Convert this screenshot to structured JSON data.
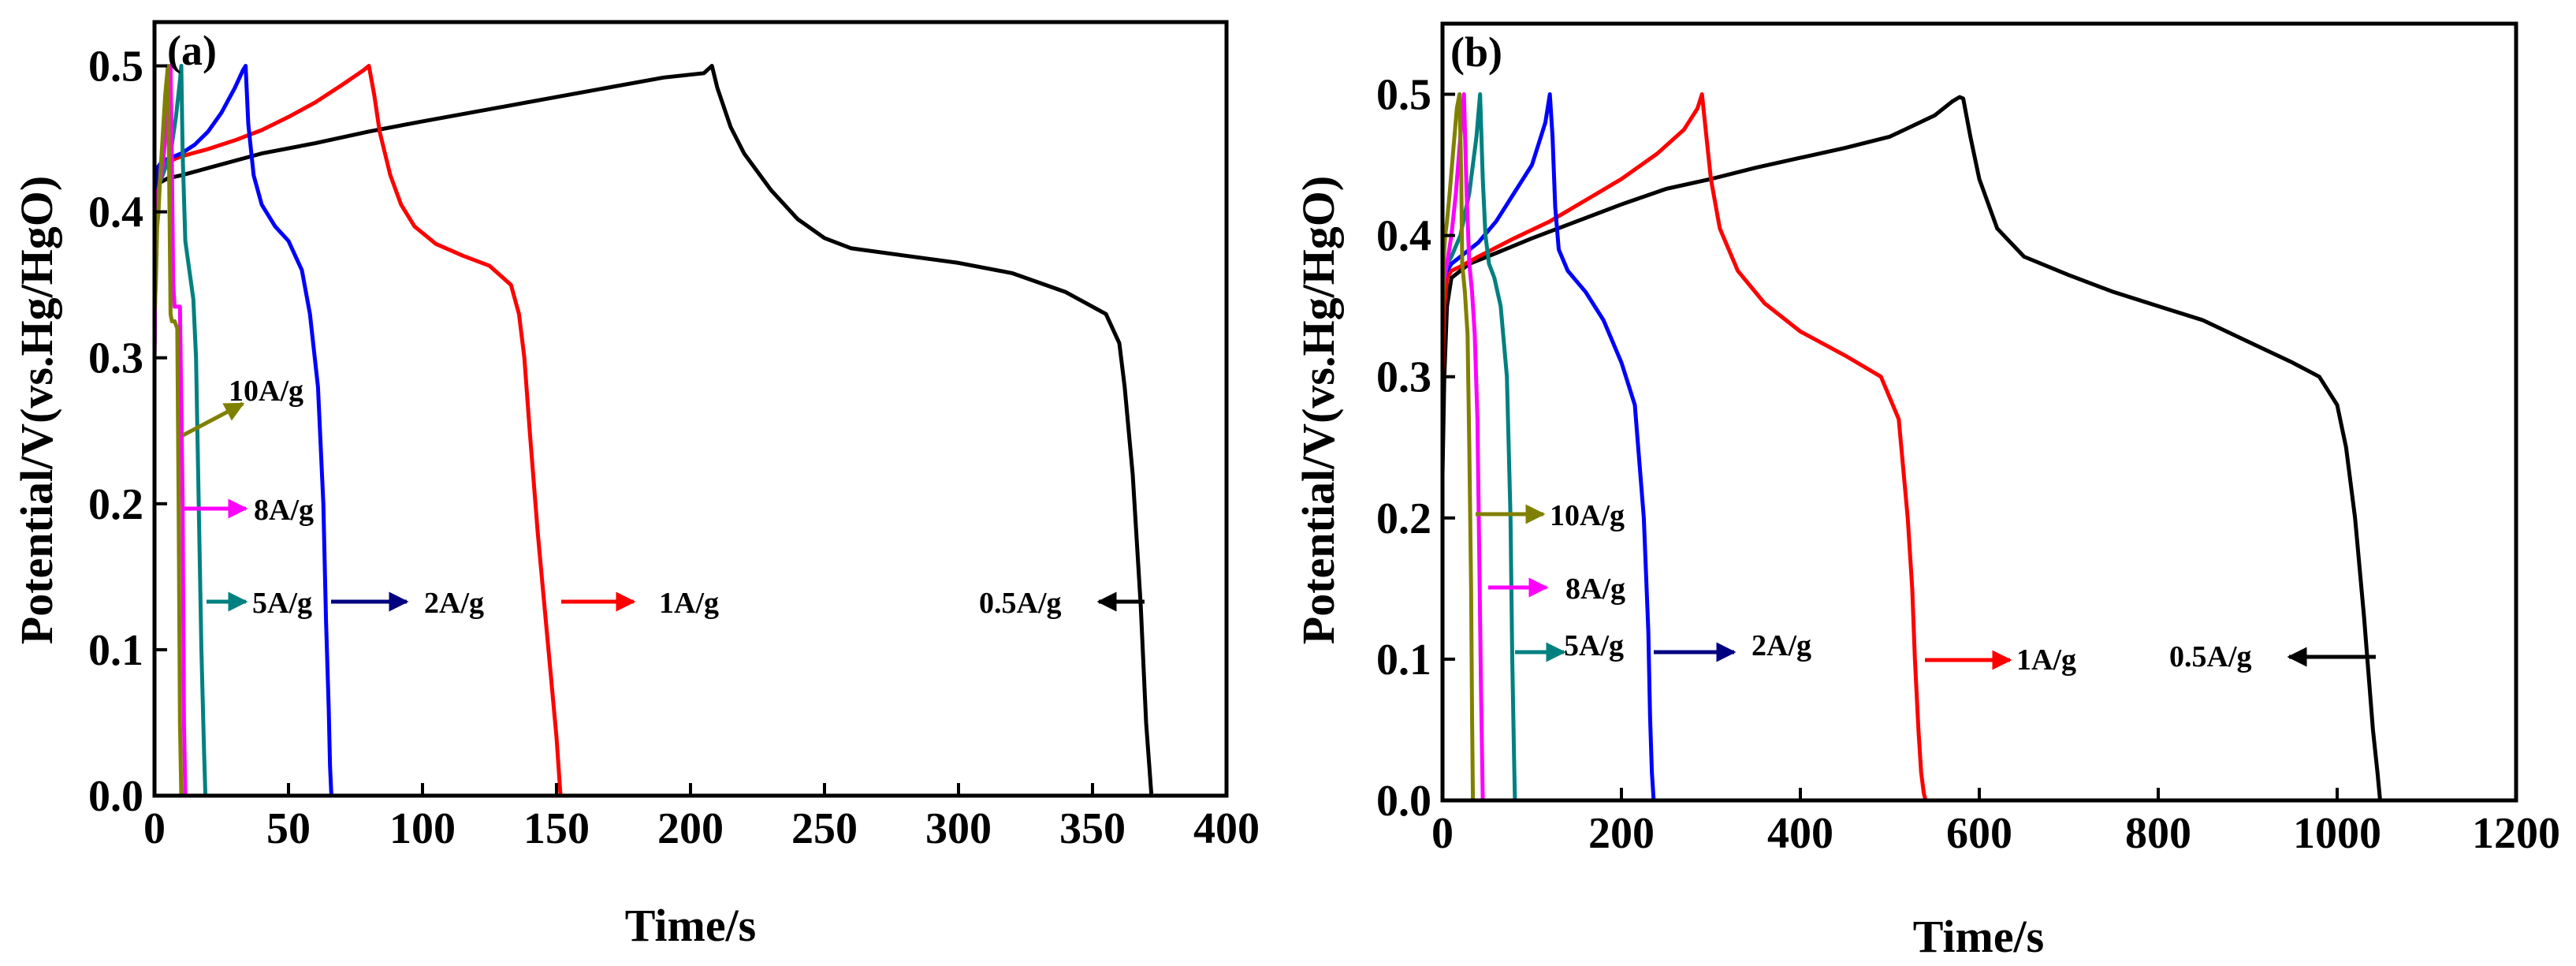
{
  "chart_data": [
    {
      "panel_label": "(a)",
      "type": "line",
      "xlabel": "Time/s",
      "ylabel": "Potential/V(vs.Hg/HgO)",
      "xlim": [
        0,
        400
      ],
      "ylim": [
        0.0,
        0.53
      ],
      "xticks": [
        0,
        50,
        100,
        150,
        200,
        250,
        300,
        350,
        400
      ],
      "xtick_labels": [
        "0",
        "50",
        "100",
        "150",
        "200",
        "250",
        "300",
        "350",
        "400"
      ],
      "yticks": [
        0.0,
        0.1,
        0.2,
        0.3,
        0.4,
        0.5
      ],
      "ytick_labels": [
        "0.0",
        "0.1",
        "0.2",
        "0.3",
        "0.4",
        "0.5"
      ],
      "series": [
        {
          "name": "0.5A/g",
          "color": "#000000",
          "x": [
            0,
            0.5,
            2,
            5,
            10,
            20,
            40,
            60,
            80,
            100,
            130,
            160,
            190,
            205,
            208,
            210,
            215,
            220,
            230,
            240,
            250,
            260,
            280,
            300,
            320,
            340,
            355,
            360,
            362,
            365,
            368,
            370,
            372
          ],
          "y": [
            0.32,
            0.4,
            0.42,
            0.423,
            0.425,
            0.43,
            0.44,
            0.447,
            0.455,
            0.462,
            0.472,
            0.482,
            0.492,
            0.495,
            0.5,
            0.485,
            0.458,
            0.44,
            0.415,
            0.395,
            0.382,
            0.375,
            0.37,
            0.365,
            0.358,
            0.345,
            0.33,
            0.31,
            0.28,
            0.22,
            0.13,
            0.05,
            0.0
          ]
        },
        {
          "name": "1A/g",
          "color": "#ff0000",
          "x": [
            0,
            0.5,
            1,
            3,
            6,
            10,
            20,
            30,
            40,
            50,
            60,
            70,
            78,
            80,
            82,
            84,
            88,
            92,
            97,
            105,
            115,
            125,
            133,
            136,
            138,
            140,
            143,
            146,
            148,
            150,
            151.5
          ],
          "y": [
            0.3,
            0.41,
            0.43,
            0.433,
            0.435,
            0.438,
            0.443,
            0.449,
            0.456,
            0.465,
            0.475,
            0.487,
            0.497,
            0.5,
            0.48,
            0.455,
            0.425,
            0.405,
            0.39,
            0.378,
            0.37,
            0.363,
            0.35,
            0.33,
            0.3,
            0.25,
            0.18,
            0.12,
            0.08,
            0.04,
            0.0
          ]
        },
        {
          "name": "2A/g",
          "color": "#0000ff",
          "x": [
            0,
            0.3,
            1,
            3,
            6,
            10,
            15,
            20,
            25,
            30,
            33,
            34,
            35,
            37,
            40,
            45,
            50,
            55,
            58,
            61,
            63,
            64,
            65,
            65.5,
            66
          ],
          "y": [
            0.3,
            0.41,
            0.43,
            0.435,
            0.437,
            0.44,
            0.446,
            0.455,
            0.468,
            0.485,
            0.497,
            0.5,
            0.46,
            0.425,
            0.405,
            0.39,
            0.38,
            0.36,
            0.33,
            0.28,
            0.2,
            0.12,
            0.06,
            0.02,
            0.0
          ]
        },
        {
          "name": "5A/g",
          "color": "#008080",
          "x": [
            0,
            0.5,
            2,
            4,
            6,
            8,
            9.5,
            10,
            10.5,
            11.5,
            13,
            14.5,
            15.5,
            16.5,
            17.5,
            18.5,
            19
          ],
          "y": [
            0.3,
            0.4,
            0.42,
            0.43,
            0.44,
            0.465,
            0.49,
            0.5,
            0.44,
            0.38,
            0.36,
            0.34,
            0.3,
            0.2,
            0.1,
            0.03,
            0.0
          ]
        },
        {
          "name": "8A/g",
          "color": "#ff00ff",
          "x": [
            0,
            0.5,
            1,
            2,
            3,
            4,
            5,
            6,
            6.5,
            7,
            7.5,
            8.5,
            9.5,
            10.5,
            11,
            11.5
          ],
          "y": [
            0.3,
            0.39,
            0.41,
            0.42,
            0.43,
            0.45,
            0.48,
            0.5,
            0.43,
            0.35,
            0.335,
            0.335,
            0.335,
            0.2,
            0.05,
            0.0
          ]
        },
        {
          "name": "10A/g",
          "color": "#808000",
          "x": [
            0,
            0.5,
            1,
            1.5,
            2,
            3,
            4,
            5,
            5.5,
            6,
            6.5,
            7,
            7.5,
            8.5,
            9,
            9.5,
            10
          ],
          "y": [
            0.33,
            0.35,
            0.39,
            0.4,
            0.42,
            0.45,
            0.48,
            0.5,
            0.42,
            0.33,
            0.325,
            0.325,
            0.325,
            0.32,
            0.2,
            0.05,
            0.0
          ]
        }
      ],
      "annotations": [
        {
          "text": "10A/g",
          "series": "10A/g",
          "arrow": "left-to-right"
        },
        {
          "text": "8A/g",
          "series": "8A/g",
          "arrow": "left-to-right"
        },
        {
          "text": "5A/g",
          "series": "5A/g",
          "arrow": "left-to-right"
        },
        {
          "text": "2A/g",
          "series": "2A/g",
          "arrow": "left-to-right"
        },
        {
          "text": "1A/g",
          "series": "1A/g",
          "arrow": "left-to-right"
        },
        {
          "text": "0.5A/g",
          "series": "0.5A/g",
          "arrow": "right-to-left"
        }
      ]
    },
    {
      "panel_label": "(b)",
      "type": "line",
      "xlabel": "Time/s",
      "ylabel": "Potential/V(vs.Hg/HgO)",
      "xlim": [
        0,
        1200
      ],
      "ylim": [
        0.0,
        0.55
      ],
      "xticks": [
        0,
        200,
        400,
        600,
        800,
        1000,
        1200
      ],
      "xtick_labels": [
        "0",
        "200",
        "400",
        "600",
        "800",
        "1000",
        "1200"
      ],
      "yticks": [
        0.0,
        0.1,
        0.2,
        0.3,
        0.4,
        0.5
      ],
      "ytick_labels": [
        "0.0",
        "0.1",
        "0.2",
        "0.3",
        "0.4",
        "0.5"
      ],
      "series": [
        {
          "name": "0.5A/g",
          "color": "#000000",
          "x": [
            0,
            2,
            5,
            10,
            20,
            30,
            50,
            100,
            150,
            200,
            250,
            300,
            350,
            400,
            450,
            500,
            550,
            570,
            578,
            582,
            590,
            600,
            620,
            650,
            700,
            750,
            800,
            850,
            900,
            950,
            980,
            1000,
            1010,
            1020,
            1030,
            1040,
            1045,
            1048
          ],
          "y": [
            0.23,
            0.3,
            0.35,
            0.37,
            0.375,
            0.38,
            0.385,
            0.398,
            0.41,
            0.422,
            0.433,
            0.44,
            0.448,
            0.455,
            0.462,
            0.47,
            0.485,
            0.495,
            0.498,
            0.497,
            0.47,
            0.44,
            0.405,
            0.385,
            0.372,
            0.36,
            0.35,
            0.34,
            0.325,
            0.31,
            0.3,
            0.28,
            0.25,
            0.2,
            0.13,
            0.05,
            0.02,
            0.0
          ]
        },
        {
          "name": "1A/g",
          "color": "#ff0000",
          "x": [
            0,
            2,
            5,
            10,
            20,
            40,
            80,
            120,
            160,
            200,
            240,
            270,
            285,
            290,
            295,
            300,
            310,
            330,
            360,
            400,
            450,
            490,
            510,
            520,
            525,
            528,
            532,
            535,
            538,
            540
          ],
          "y": [
            0.3,
            0.35,
            0.37,
            0.375,
            0.378,
            0.385,
            0.398,
            0.41,
            0.425,
            0.44,
            0.458,
            0.475,
            0.49,
            0.5,
            0.47,
            0.44,
            0.405,
            0.375,
            0.352,
            0.332,
            0.315,
            0.3,
            0.27,
            0.2,
            0.15,
            0.1,
            0.05,
            0.02,
            0.005,
            0.0
          ]
        },
        {
          "name": "2A/g",
          "color": "#0000ff",
          "x": [
            0,
            2,
            5,
            10,
            20,
            40,
            60,
            80,
            100,
            115,
            120,
            123,
            126,
            130,
            140,
            160,
            180,
            200,
            215,
            225,
            230,
            232,
            234,
            236
          ],
          "y": [
            0.36,
            0.37,
            0.375,
            0.38,
            0.385,
            0.395,
            0.41,
            0.43,
            0.45,
            0.48,
            0.5,
            0.47,
            0.42,
            0.39,
            0.375,
            0.36,
            0.34,
            0.31,
            0.28,
            0.2,
            0.12,
            0.06,
            0.02,
            0.0
          ]
        },
        {
          "name": "5A/g",
          "color": "#008080",
          "x": [
            0,
            2,
            5,
            10,
            20,
            30,
            38,
            42,
            45,
            48,
            52,
            58,
            65,
            72,
            76,
            78,
            80,
            81
          ],
          "y": [
            0.35,
            0.37,
            0.38,
            0.385,
            0.4,
            0.43,
            0.47,
            0.5,
            0.44,
            0.4,
            0.38,
            0.37,
            0.35,
            0.3,
            0.2,
            0.1,
            0.03,
            0.0
          ]
        },
        {
          "name": "8A/g",
          "color": "#ff00ff",
          "x": [
            0,
            2,
            5,
            10,
            15,
            20,
            24,
            27,
            30,
            33,
            36,
            39,
            41,
            43,
            45
          ],
          "y": [
            0.36,
            0.37,
            0.38,
            0.4,
            0.43,
            0.47,
            0.5,
            0.43,
            0.38,
            0.36,
            0.33,
            0.27,
            0.18,
            0.08,
            0.0
          ]
        },
        {
          "name": "10A/g",
          "color": "#808000",
          "x": [
            0,
            1,
            3,
            5,
            8,
            12,
            16,
            19,
            21,
            22,
            25,
            28,
            30,
            32,
            33,
            34
          ],
          "y": [
            0.34,
            0.38,
            0.4,
            0.41,
            0.43,
            0.46,
            0.49,
            0.5,
            0.44,
            0.38,
            0.36,
            0.33,
            0.25,
            0.15,
            0.06,
            0.0
          ]
        }
      ],
      "annotations": [
        {
          "text": "10A/g",
          "series": "10A/g",
          "arrow": "left-to-right"
        },
        {
          "text": "8A/g",
          "series": "8A/g",
          "arrow": "left-to-right"
        },
        {
          "text": "5A/g",
          "series": "5A/g",
          "arrow": "left-to-right"
        },
        {
          "text": "2A/g",
          "series": "2A/g",
          "arrow": "left-to-right"
        },
        {
          "text": "1A/g",
          "series": "1A/g",
          "arrow": "left-to-right"
        },
        {
          "text": "0.5A/g",
          "series": "0.5A/g",
          "arrow": "right-to-left"
        }
      ]
    }
  ]
}
